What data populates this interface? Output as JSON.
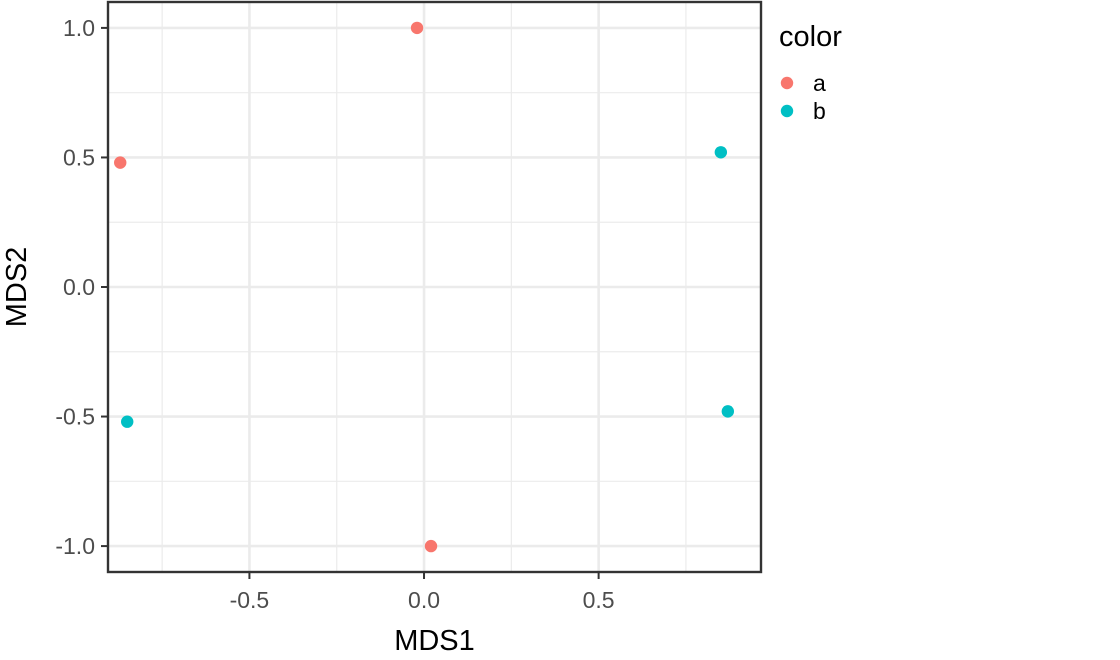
{
  "chart_data": {
    "type": "scatter",
    "title": "",
    "xlabel": "MDS1",
    "ylabel": "MDS2",
    "xlim": [
      -0.905,
      0.965
    ],
    "ylim": [
      -1.1,
      1.1
    ],
    "x_ticks": [
      -0.5,
      0.0,
      0.5
    ],
    "x_tick_labels": [
      "-0.5",
      "0.0",
      "0.5"
    ],
    "y_ticks": [
      1.0,
      0.5,
      0.0,
      -0.5,
      -1.0
    ],
    "y_tick_labels": [
      "1.0",
      "0.5",
      "0.0",
      "-0.5",
      "-1.0"
    ],
    "grid": true,
    "legend": {
      "title": "color",
      "position": "right",
      "entries": [
        {
          "label": "a",
          "color": "#F8766D"
        },
        {
          "label": "b",
          "color": "#00BFC4"
        }
      ]
    },
    "series": [
      {
        "name": "a",
        "color": "#F8766D",
        "points": [
          {
            "x": -0.02,
            "y": 1.0
          },
          {
            "x": -0.87,
            "y": 0.48
          },
          {
            "x": 0.02,
            "y": -1.0
          }
        ]
      },
      {
        "name": "b",
        "color": "#00BFC4",
        "points": [
          {
            "x": 0.85,
            "y": 0.52
          },
          {
            "x": 0.87,
            "y": -0.48
          },
          {
            "x": -0.85,
            "y": -0.52
          }
        ]
      }
    ]
  }
}
